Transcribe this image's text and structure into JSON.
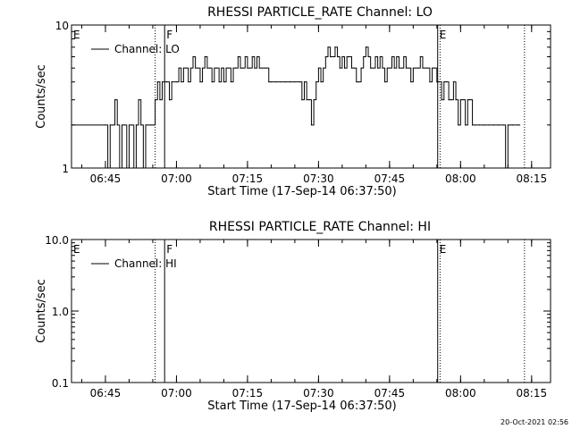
{
  "footer": {
    "timestamp": "20-Oct-2021 02:56"
  },
  "chart_data": [
    {
      "type": "line",
      "title": "RHESSI PARTICLE_RATE Channel: LO",
      "xlabel": "Start Time (17-Sep-14 06:37:50)",
      "ylabel": "Counts/sec",
      "yscale": "log",
      "ylim": [
        1,
        10
      ],
      "xlim": [
        "06:37:50",
        "08:19:00"
      ],
      "xticks": [
        "06:45",
        "07:00",
        "07:15",
        "07:30",
        "07:45",
        "08:00",
        "08:15"
      ],
      "yticks": [
        "1",
        "10"
      ],
      "legend": {
        "placement": "top-left",
        "entries": [
          "Channel: LO"
        ]
      },
      "markers": [
        {
          "label": "E",
          "time": "06:37:50",
          "style": "none"
        },
        {
          "label": "",
          "time": "06:55:30",
          "style": "dotted"
        },
        {
          "label": "F",
          "time": "06:57:30",
          "style": "solid"
        },
        {
          "label": "E",
          "time": "07:55:10",
          "style": "solid"
        },
        {
          "label": "",
          "time": "07:55:40",
          "style": "dotted"
        },
        {
          "label": "",
          "time": "08:13:30",
          "style": "dotted"
        }
      ],
      "series": [
        {
          "name": "Channel: LO",
          "points": [
            [
              "06:37:50",
              2
            ],
            [
              "06:45:00",
              2
            ],
            [
              "06:45:30",
              1
            ],
            [
              "06:46:00",
              2
            ],
            [
              "06:46:30",
              2
            ],
            [
              "06:47:00",
              3
            ],
            [
              "06:47:30",
              2
            ],
            [
              "06:48:00",
              1
            ],
            [
              "06:48:30",
              2
            ],
            [
              "06:49:00",
              2
            ],
            [
              "06:49:30",
              1
            ],
            [
              "06:50:00",
              2
            ],
            [
              "06:50:30",
              2
            ],
            [
              "06:51:00",
              1
            ],
            [
              "06:51:30",
              2
            ],
            [
              "06:52:00",
              3
            ],
            [
              "06:52:30",
              2
            ],
            [
              "06:53:00",
              1
            ],
            [
              "06:53:30",
              2
            ],
            [
              "06:54:00",
              2
            ],
            [
              "06:54:30",
              2
            ],
            [
              "06:55:00",
              2
            ],
            [
              "06:55:30",
              3
            ],
            [
              "06:56:00",
              4
            ],
            [
              "06:56:30",
              3
            ],
            [
              "06:57:00",
              4
            ],
            [
              "06:58:00",
              4
            ],
            [
              "06:58:30",
              3
            ],
            [
              "06:59:00",
              4
            ],
            [
              "07:00:00",
              4
            ],
            [
              "07:00:30",
              5
            ],
            [
              "07:01:00",
              4
            ],
            [
              "07:01:30",
              5
            ],
            [
              "07:02:00",
              5
            ],
            [
              "07:02:30",
              4
            ],
            [
              "07:03:00",
              5
            ],
            [
              "07:03:30",
              6
            ],
            [
              "07:04:00",
              5
            ],
            [
              "07:04:30",
              5
            ],
            [
              "07:05:00",
              4
            ],
            [
              "07:05:30",
              5
            ],
            [
              "07:06:00",
              6
            ],
            [
              "07:06:30",
              5
            ],
            [
              "07:07:00",
              5
            ],
            [
              "07:07:30",
              4
            ],
            [
              "07:08:00",
              5
            ],
            [
              "07:08:30",
              5
            ],
            [
              "07:09:00",
              4
            ],
            [
              "07:09:30",
              5
            ],
            [
              "07:10:00",
              4
            ],
            [
              "07:10:30",
              5
            ],
            [
              "07:11:00",
              5
            ],
            [
              "07:11:30",
              4
            ],
            [
              "07:12:00",
              5
            ],
            [
              "07:12:30",
              5
            ],
            [
              "07:13:00",
              6
            ],
            [
              "07:13:30",
              5
            ],
            [
              "07:14:00",
              5
            ],
            [
              "07:14:30",
              6
            ],
            [
              "07:15:00",
              5
            ],
            [
              "07:15:30",
              5
            ],
            [
              "07:16:00",
              6
            ],
            [
              "07:16:30",
              5
            ],
            [
              "07:17:00",
              6
            ],
            [
              "07:17:30",
              5
            ],
            [
              "07:18:00",
              5
            ],
            [
              "07:18:30",
              5
            ],
            [
              "07:19:00",
              5
            ],
            [
              "07:19:30",
              4
            ],
            [
              "07:20:00",
              4
            ],
            [
              "07:21:00",
              4
            ],
            [
              "07:22:00",
              4
            ],
            [
              "07:23:00",
              4
            ],
            [
              "07:24:00",
              4
            ],
            [
              "07:25:00",
              4
            ],
            [
              "07:26:00",
              4
            ],
            [
              "07:26:30",
              3
            ],
            [
              "07:27:00",
              4
            ],
            [
              "07:27:30",
              3
            ],
            [
              "07:28:00",
              3
            ],
            [
              "07:28:30",
              2
            ],
            [
              "07:29:00",
              3
            ],
            [
              "07:29:30",
              4
            ],
            [
              "07:30:00",
              5
            ],
            [
              "07:30:30",
              4
            ],
            [
              "07:31:00",
              5
            ],
            [
              "07:31:30",
              6
            ],
            [
              "07:32:00",
              7
            ],
            [
              "07:32:30",
              6
            ],
            [
              "07:33:00",
              6
            ],
            [
              "07:33:30",
              7
            ],
            [
              "07:34:00",
              6
            ],
            [
              "07:34:30",
              5
            ],
            [
              "07:35:00",
              6
            ],
            [
              "07:35:30",
              5
            ],
            [
              "07:36:00",
              6
            ],
            [
              "07:36:30",
              6
            ],
            [
              "07:37:00",
              5
            ],
            [
              "07:37:30",
              5
            ],
            [
              "07:38:00",
              4
            ],
            [
              "07:38:30",
              4
            ],
            [
              "07:39:00",
              5
            ],
            [
              "07:39:30",
              6
            ],
            [
              "07:40:00",
              7
            ],
            [
              "07:40:30",
              6
            ],
            [
              "07:41:00",
              5
            ],
            [
              "07:41:30",
              5
            ],
            [
              "07:42:00",
              6
            ],
            [
              "07:42:30",
              5
            ],
            [
              "07:43:00",
              6
            ],
            [
              "07:43:30",
              5
            ],
            [
              "07:44:00",
              4
            ],
            [
              "07:44:30",
              5
            ],
            [
              "07:45:00",
              5
            ],
            [
              "07:45:30",
              6
            ],
            [
              "07:46:00",
              5
            ],
            [
              "07:46:30",
              6
            ],
            [
              "07:47:00",
              5
            ],
            [
              "07:47:30",
              5
            ],
            [
              "07:48:00",
              6
            ],
            [
              "07:48:30",
              5
            ],
            [
              "07:49:00",
              5
            ],
            [
              "07:49:30",
              4
            ],
            [
              "07:50:00",
              5
            ],
            [
              "07:50:30",
              5
            ],
            [
              "07:51:00",
              5
            ],
            [
              "07:51:30",
              6
            ],
            [
              "07:52:00",
              5
            ],
            [
              "07:52:30",
              5
            ],
            [
              "07:53:00",
              5
            ],
            [
              "07:53:30",
              4
            ],
            [
              "07:54:00",
              5
            ],
            [
              "07:54:30",
              5
            ],
            [
              "07:55:00",
              4
            ],
            [
              "07:55:30",
              4
            ],
            [
              "07:56:00",
              3
            ],
            [
              "07:56:30",
              4
            ],
            [
              "07:57:00",
              4
            ],
            [
              "07:57:30",
              3
            ],
            [
              "07:58:00",
              3
            ],
            [
              "07:58:30",
              4
            ],
            [
              "07:59:00",
              3
            ],
            [
              "07:59:30",
              2
            ],
            [
              "08:00:00",
              3
            ],
            [
              "08:00:30",
              3
            ],
            [
              "08:01:00",
              2
            ],
            [
              "08:01:30",
              3
            ],
            [
              "08:02:00",
              3
            ],
            [
              "08:02:30",
              2
            ],
            [
              "08:03:00",
              2
            ],
            [
              "08:04:00",
              2
            ],
            [
              "08:05:00",
              2
            ],
            [
              "08:06:00",
              2
            ],
            [
              "08:07:00",
              2
            ],
            [
              "08:08:00",
              2
            ],
            [
              "08:09:00",
              2
            ],
            [
              "08:09:30",
              1
            ],
            [
              "08:10:00",
              2
            ],
            [
              "08:10:30",
              2
            ],
            [
              "08:11:00",
              2
            ],
            [
              "08:12:00",
              2
            ],
            [
              "08:12:30",
              2
            ]
          ]
        }
      ]
    },
    {
      "type": "line",
      "title": "RHESSI PARTICLE_RATE Channel: HI",
      "xlabel": "Start Time (17-Sep-14 06:37:50)",
      "ylabel": "Counts/sec",
      "yscale": "log",
      "ylim": [
        0.1,
        10
      ],
      "xlim": [
        "06:37:50",
        "08:19:00"
      ],
      "xticks": [
        "06:45",
        "07:00",
        "07:15",
        "07:30",
        "07:45",
        "08:00",
        "08:15"
      ],
      "yticks": [
        "0.1",
        "1.0",
        "10.0"
      ],
      "legend": {
        "placement": "top-left",
        "entries": [
          "Channel: HI"
        ]
      },
      "markers": [
        {
          "label": "E",
          "time": "06:37:50",
          "style": "none"
        },
        {
          "label": "",
          "time": "06:55:30",
          "style": "dotted"
        },
        {
          "label": "F",
          "time": "06:57:30",
          "style": "solid"
        },
        {
          "label": "E",
          "time": "07:55:10",
          "style": "solid"
        },
        {
          "label": "",
          "time": "07:55:40",
          "style": "dotted"
        },
        {
          "label": "",
          "time": "08:13:30",
          "style": "dotted"
        }
      ],
      "series": [
        {
          "name": "Channel: HI",
          "points": []
        }
      ]
    }
  ]
}
